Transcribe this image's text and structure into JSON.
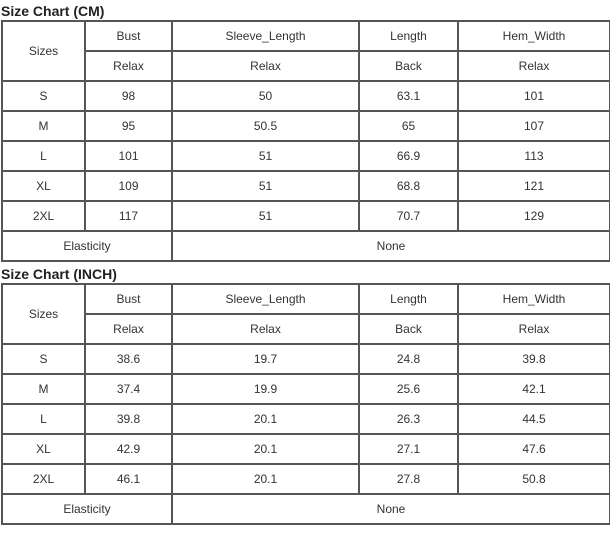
{
  "tables": [
    {
      "title": "Size Chart (CM)",
      "sizes_label": "Sizes",
      "headers": [
        "Bust",
        "Sleeve_Length",
        "Length",
        "Hem_Width"
      ],
      "subheaders": [
        "Relax",
        "Relax",
        "Back",
        "Relax"
      ],
      "rows": [
        {
          "size": "S",
          "values": [
            "98",
            "50",
            "63.1",
            "101"
          ]
        },
        {
          "size": "M",
          "values": [
            "95",
            "50.5",
            "65",
            "107"
          ]
        },
        {
          "size": "L",
          "values": [
            "101",
            "51",
            "66.9",
            "113"
          ]
        },
        {
          "size": "XL",
          "values": [
            "109",
            "51",
            "68.8",
            "121"
          ]
        },
        {
          "size": "2XL",
          "values": [
            "117",
            "51",
            "70.7",
            "129"
          ]
        }
      ],
      "elasticity_label": "Elasticity",
      "elasticity_value": "None"
    },
    {
      "title": "Size Chart (INCH)",
      "sizes_label": "Sizes",
      "headers": [
        "Bust",
        "Sleeve_Length",
        "Length",
        "Hem_Width"
      ],
      "subheaders": [
        "Relax",
        "Relax",
        "Back",
        "Relax"
      ],
      "rows": [
        {
          "size": "S",
          "values": [
            "38.6",
            "19.7",
            "24.8",
            "39.8"
          ]
        },
        {
          "size": "M",
          "values": [
            "37.4",
            "19.9",
            "25.6",
            "42.1"
          ]
        },
        {
          "size": "L",
          "values": [
            "39.8",
            "20.1",
            "26.3",
            "44.5"
          ]
        },
        {
          "size": "XL",
          "values": [
            "42.9",
            "20.1",
            "27.1",
            "47.6"
          ]
        },
        {
          "size": "2XL",
          "values": [
            "46.1",
            "20.1",
            "27.8",
            "50.8"
          ]
        }
      ],
      "elasticity_label": "Elasticity",
      "elasticity_value": "None"
    }
  ]
}
